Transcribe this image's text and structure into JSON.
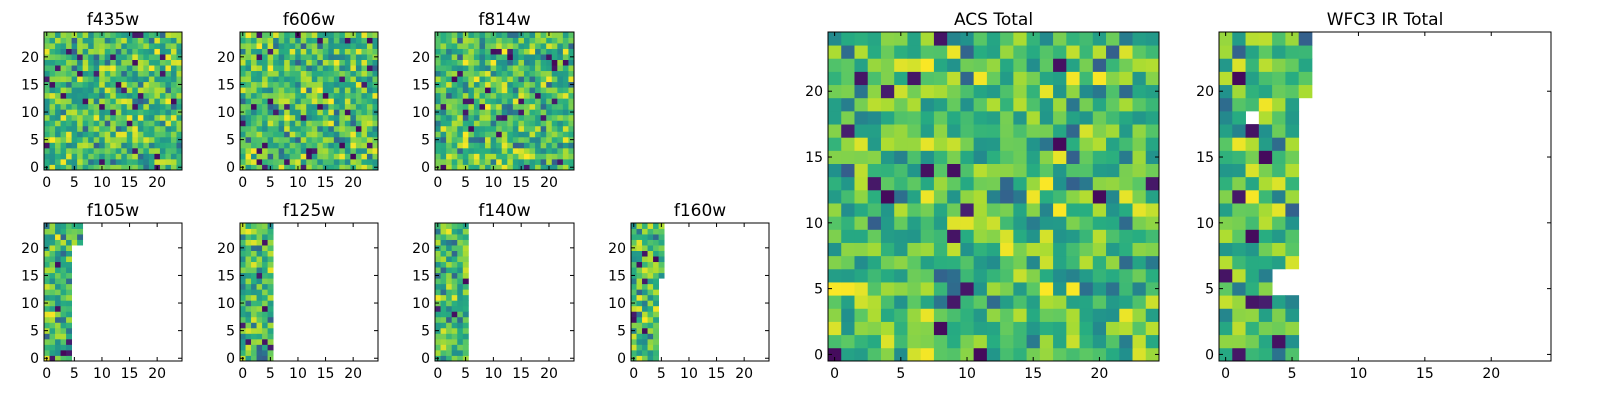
{
  "chart_data": [
    {
      "id": "f435w",
      "type": "heatmap",
      "title": "f435w",
      "xlim": [
        0,
        25
      ],
      "ylim": [
        0,
        25
      ],
      "xticks": [
        "0",
        "5",
        "10",
        "15",
        "20"
      ],
      "yticks": [
        "0",
        "5",
        "10",
        "15",
        "20"
      ],
      "coverage": {
        "x_max": 25,
        "y_max": 25
      },
      "colormap": "viridis"
    },
    {
      "id": "f606w",
      "type": "heatmap",
      "title": "f606w",
      "xlim": [
        0,
        25
      ],
      "ylim": [
        0,
        25
      ],
      "xticks": [
        "0",
        "5",
        "10",
        "15",
        "20"
      ],
      "yticks": [
        "0",
        "5",
        "10",
        "15",
        "20"
      ],
      "coverage": {
        "x_max": 25,
        "y_max": 25
      },
      "colormap": "viridis"
    },
    {
      "id": "f814w",
      "type": "heatmap",
      "title": "f814w",
      "xlim": [
        0,
        25
      ],
      "ylim": [
        0,
        25
      ],
      "xticks": [
        "0",
        "5",
        "10",
        "15",
        "20"
      ],
      "yticks": [
        "0",
        "5",
        "10",
        "15",
        "20"
      ],
      "coverage": {
        "x_max": 25,
        "y_max": 25
      },
      "colormap": "viridis"
    },
    {
      "id": "f105w",
      "type": "heatmap",
      "title": "f105w",
      "xlim": [
        0,
        25
      ],
      "ylim": [
        0,
        25
      ],
      "xticks": [
        "0",
        "5",
        "10",
        "15",
        "20"
      ],
      "yticks": [
        "0",
        "5",
        "10",
        "15",
        "20"
      ],
      "coverage": {
        "x_max": 5,
        "x_max_top": 7,
        "top_from_y": 21,
        "y_max": 25
      },
      "colormap": "viridis"
    },
    {
      "id": "f125w",
      "type": "heatmap",
      "title": "f125w",
      "xlim": [
        0,
        25
      ],
      "ylim": [
        0,
        25
      ],
      "xticks": [
        "0",
        "5",
        "10",
        "15",
        "20"
      ],
      "yticks": [
        "0",
        "5",
        "10",
        "15",
        "20"
      ],
      "coverage": {
        "x_max": 6,
        "y_max": 25
      },
      "colormap": "viridis"
    },
    {
      "id": "f140w",
      "type": "heatmap",
      "title": "f140w",
      "xlim": [
        0,
        25
      ],
      "ylim": [
        0,
        25
      ],
      "xticks": [
        "0",
        "5",
        "10",
        "15",
        "20"
      ],
      "yticks": [
        "0",
        "5",
        "10",
        "15",
        "20"
      ],
      "coverage": {
        "x_max": 6,
        "y_max": 25
      },
      "colormap": "viridis"
    },
    {
      "id": "f160w",
      "type": "heatmap",
      "title": "f160w",
      "xlim": [
        0,
        25
      ],
      "ylim": [
        0,
        25
      ],
      "xticks": [
        "0",
        "5",
        "10",
        "15",
        "20"
      ],
      "yticks": [
        "0",
        "5",
        "10",
        "15",
        "20"
      ],
      "coverage": {
        "x_max": 5,
        "x_max_top": 6,
        "top_from_y": 15,
        "y_max": 25
      },
      "colormap": "viridis"
    },
    {
      "id": "acs-total",
      "type": "heatmap",
      "title": "ACS Total",
      "xlim": [
        0,
        25
      ],
      "ylim": [
        0,
        25
      ],
      "xticks": [
        "0",
        "5",
        "10",
        "15",
        "20"
      ],
      "yticks": [
        "0",
        "5",
        "10",
        "15",
        "20"
      ],
      "coverage": {
        "x_max": 25,
        "y_max": 25
      },
      "colormap": "viridis"
    },
    {
      "id": "wfc3-ir-total",
      "type": "heatmap",
      "title": "WFC3 IR Total",
      "xlim": [
        0,
        25
      ],
      "ylim": [
        0,
        25
      ],
      "xticks": [
        "0",
        "5",
        "10",
        "15",
        "20"
      ],
      "yticks": [
        "0",
        "5",
        "10",
        "15",
        "20"
      ],
      "coverage": {
        "x_max": 6,
        "x_max_top": 7,
        "top_from_y": 20,
        "y_max": 25,
        "missing_cells": [
          [
            2,
            18
          ],
          [
            4,
            5
          ],
          [
            4,
            6
          ],
          [
            5,
            5
          ],
          [
            5,
            6
          ]
        ]
      },
      "colormap": "viridis"
    }
  ],
  "colors": {
    "viridis_dark": "#440154",
    "viridis_blue": "#31688e",
    "viridis_teal": "#21918c",
    "viridis_green": "#35b779",
    "viridis_lime": "#90d743",
    "viridis_yellow": "#fde725"
  }
}
